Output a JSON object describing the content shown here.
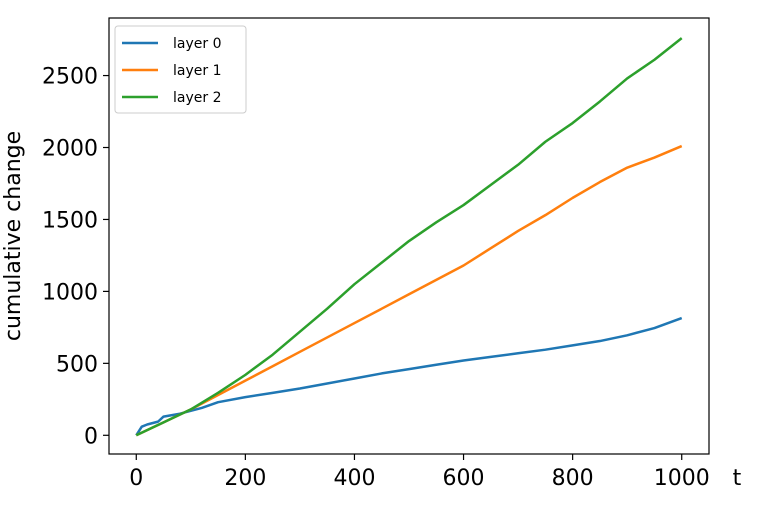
{
  "chart_data": {
    "type": "line",
    "title": "",
    "xlabel": "t",
    "ylabel": "cumulative change",
    "xlim": [
      -50,
      1050
    ],
    "ylim": [
      -130,
      2900
    ],
    "xticks": [
      0,
      200,
      400,
      600,
      800,
      1000
    ],
    "yticks": [
      0,
      500,
      1000,
      1500,
      2000,
      2500
    ],
    "grid": false,
    "legend_position": "top-left",
    "series": [
      {
        "name": "layer 0",
        "color": "#1f77b4",
        "points": [
          [
            0,
            0
          ],
          [
            10,
            60
          ],
          [
            20,
            75
          ],
          [
            40,
            95
          ],
          [
            50,
            130
          ],
          [
            80,
            150
          ],
          [
            120,
            190
          ],
          [
            150,
            230
          ],
          [
            200,
            265
          ],
          [
            250,
            295
          ],
          [
            300,
            325
          ],
          [
            350,
            360
          ],
          [
            400,
            395
          ],
          [
            450,
            430
          ],
          [
            500,
            460
          ],
          [
            550,
            490
          ],
          [
            600,
            520
          ],
          [
            650,
            545
          ],
          [
            700,
            570
          ],
          [
            750,
            595
          ],
          [
            800,
            625
          ],
          [
            850,
            655
          ],
          [
            900,
            695
          ],
          [
            950,
            745
          ],
          [
            1000,
            815
          ]
        ]
      },
      {
        "name": "layer 1",
        "color": "#ff7f0e",
        "points": [
          [
            0,
            0
          ],
          [
            50,
            90
          ],
          [
            100,
            180
          ],
          [
            150,
            280
          ],
          [
            200,
            380
          ],
          [
            250,
            480
          ],
          [
            300,
            580
          ],
          [
            350,
            680
          ],
          [
            400,
            780
          ],
          [
            450,
            880
          ],
          [
            500,
            980
          ],
          [
            550,
            1080
          ],
          [
            600,
            1180
          ],
          [
            650,
            1300
          ],
          [
            700,
            1420
          ],
          [
            750,
            1530
          ],
          [
            800,
            1650
          ],
          [
            850,
            1760
          ],
          [
            900,
            1860
          ],
          [
            950,
            1930
          ],
          [
            1000,
            2010
          ]
        ]
      },
      {
        "name": "layer 2",
        "color": "#2ca02c",
        "points": [
          [
            0,
            0
          ],
          [
            50,
            90
          ],
          [
            100,
            180
          ],
          [
            150,
            295
          ],
          [
            200,
            420
          ],
          [
            250,
            560
          ],
          [
            300,
            720
          ],
          [
            350,
            880
          ],
          [
            400,
            1050
          ],
          [
            450,
            1200
          ],
          [
            500,
            1350
          ],
          [
            550,
            1480
          ],
          [
            600,
            1600
          ],
          [
            650,
            1740
          ],
          [
            700,
            1880
          ],
          [
            750,
            2040
          ],
          [
            800,
            2170
          ],
          [
            850,
            2320
          ],
          [
            900,
            2480
          ],
          [
            950,
            2610
          ],
          [
            1000,
            2760
          ]
        ]
      }
    ]
  }
}
